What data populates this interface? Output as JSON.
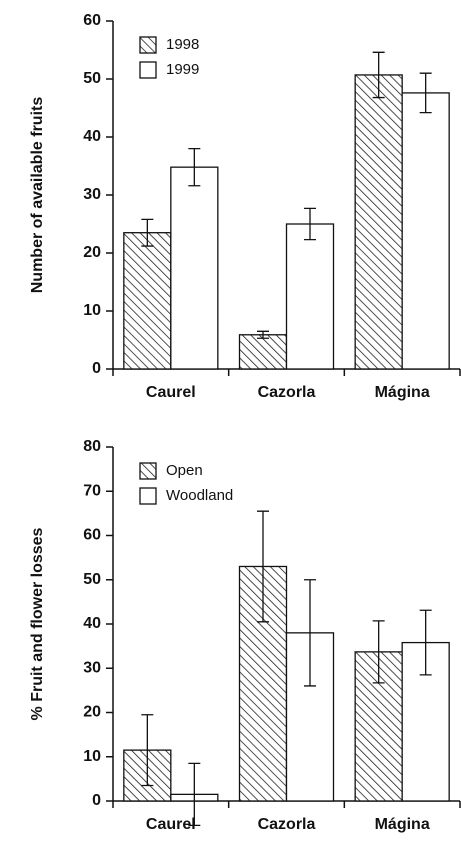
{
  "chart_data": [
    {
      "type": "bar",
      "ylabel": "Number of available fruits",
      "categories": [
        "Caurel",
        "Cazorla",
        "Mágina"
      ],
      "series": [
        {
          "name": "1998",
          "pattern": "hatched",
          "color": "#222222",
          "values": [
            23.5,
            5.9,
            50.7
          ],
          "errors": [
            2.3,
            0.6,
            3.9
          ]
        },
        {
          "name": "1999",
          "pattern": "none",
          "color": "#ffffff",
          "values": [
            34.8,
            25,
            47.6
          ],
          "errors": [
            3.2,
            2.7,
            3.4
          ]
        }
      ],
      "ylim": [
        0,
        60
      ],
      "yticks": [
        0,
        10,
        20,
        30,
        40,
        50,
        60
      ],
      "legend": "upper left"
    },
    {
      "type": "bar",
      "ylabel": "% Fruit and flower losses",
      "categories": [
        "Caurel",
        "Cazorla",
        "Mágina"
      ],
      "series": [
        {
          "name": "Open",
          "pattern": "hatched",
          "color": "#222222",
          "values": [
            11.5,
            53,
            33.7
          ],
          "errors": [
            8,
            12.5,
            7
          ]
        },
        {
          "name": "Woodland",
          "pattern": "none",
          "color": "#ffffff",
          "values": [
            1.5,
            38,
            35.8
          ],
          "errors": [
            7,
            12,
            7.3
          ]
        }
      ],
      "ylim": [
        0,
        80
      ],
      "yticks": [
        0,
        10,
        20,
        30,
        40,
        50,
        60,
        70,
        80
      ],
      "legend": "upper left"
    }
  ]
}
